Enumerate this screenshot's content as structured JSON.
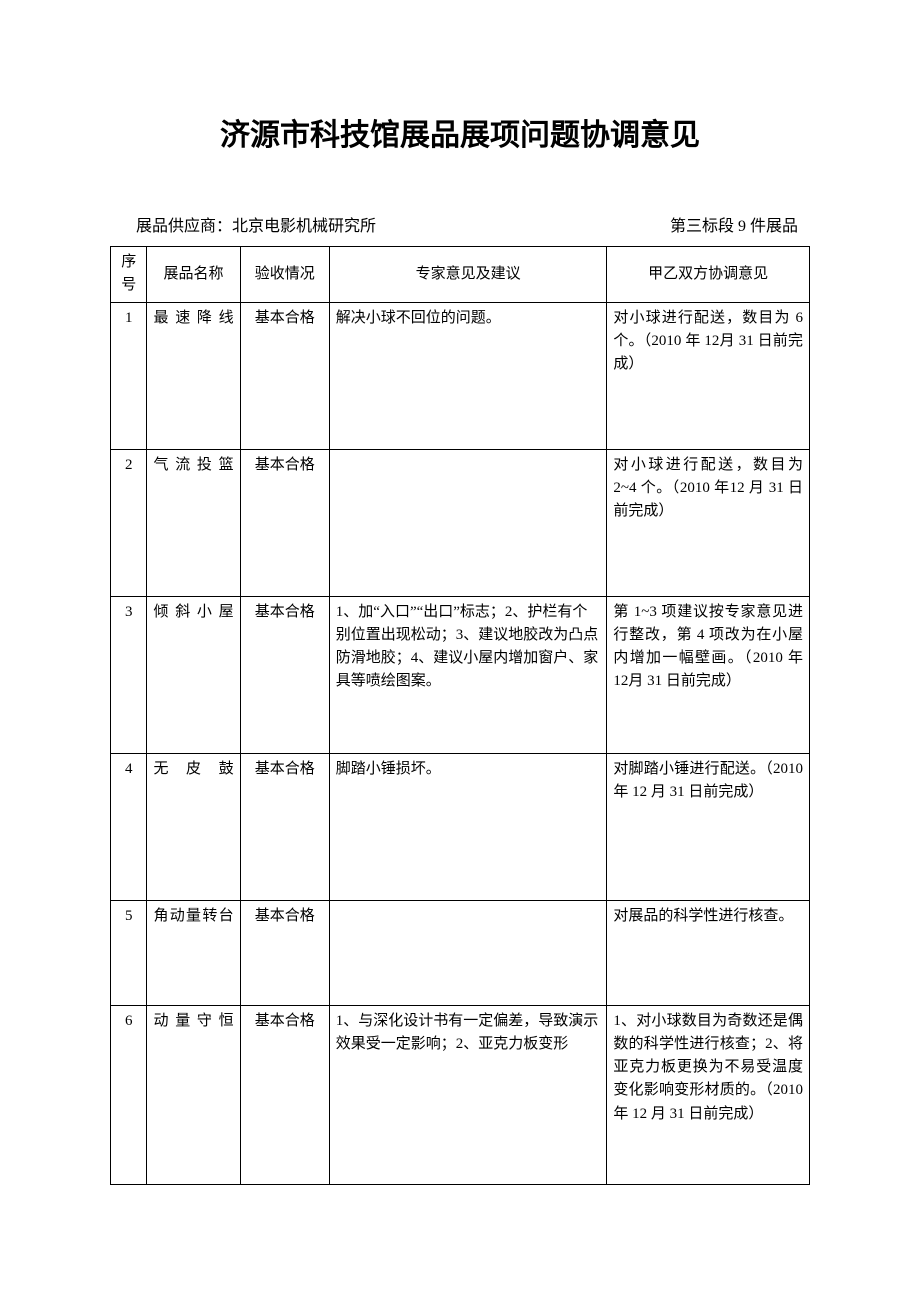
{
  "title": "济源市科技馆展品展项问题协调意见",
  "subheader": {
    "left": "展品供应商：北京电影机械研究所",
    "right": "第三标段 9 件展品"
  },
  "table": {
    "headers": {
      "idx": "序号",
      "name": "展品名称",
      "status": "验收情况",
      "expert": "专家意见及建议",
      "coord": "甲乙双方协调意见"
    },
    "rows": [
      {
        "idx": "1",
        "name": "最速降线",
        "status": "基本合格",
        "expert": "解决小球不回位的问题。",
        "coord": "对小球进行配送，数目为 6 个。（2010 年 12月 31 日前完成）"
      },
      {
        "idx": "2",
        "name": "气流投篮",
        "status": "基本合格",
        "expert": "",
        "coord": "对小球进行配送，数目为 2~4 个。（2010 年12 月 31 日前完成）"
      },
      {
        "idx": "3",
        "name": "倾斜小屋",
        "status": "基本合格",
        "expert": "1、加“入口”“出口”标志；2、护栏有个别位置出现松动；3、建议地胶改为凸点防滑地胶；4、建议小屋内增加窗户、家具等喷绘图案。",
        "coord": "第 1~3 项建议按专家意见进行整改，第 4 项改为在小屋内增加一幅壁画。（2010 年 12月 31 日前完成）"
      },
      {
        "idx": "4",
        "name": "无皮鼓",
        "status": "基本合格",
        "expert": "脚踏小锤损坏。",
        "coord": "对脚踏小锤进行配送。（2010 年 12 月 31 日前完成）"
      },
      {
        "idx": "5",
        "name": "角动量转台",
        "status": "基本合格",
        "expert": "",
        "coord": "对展品的科学性进行核查。"
      },
      {
        "idx": "6",
        "name": "动量守恒",
        "status": "基本合格",
        "expert": "1、与深化设计书有一定偏差，导致演示效果受一定影响；2、亚克力板变形",
        "coord": "1、对小球数目为奇数还是偶数的科学性进行核查；2、将亚克力板更换为不易受温度变化影响变形材质的。（2010 年 12 月 31 日前完成）"
      }
    ]
  }
}
